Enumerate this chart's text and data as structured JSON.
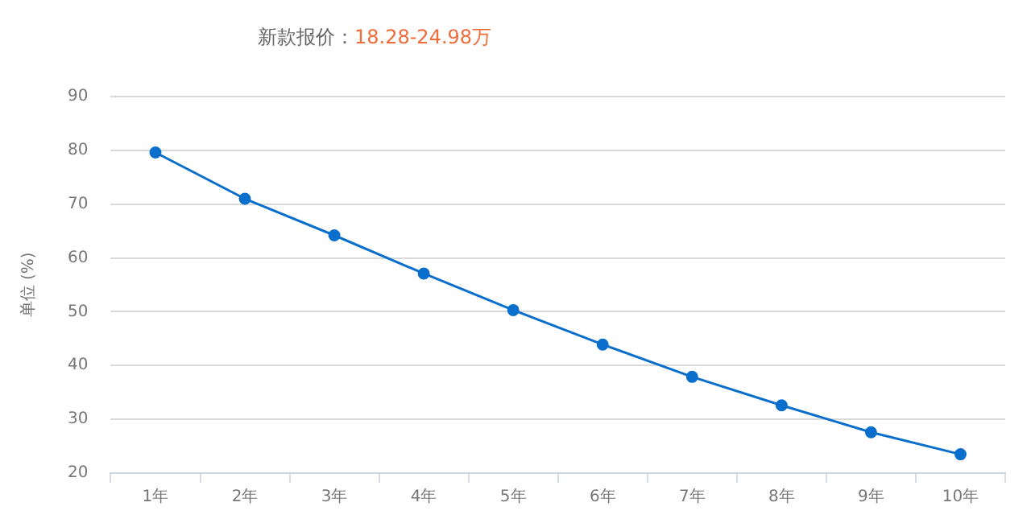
{
  "chart_data": {
    "type": "line",
    "annotations": [
      "新款报价：",
      "18.28-24.98万"
    ],
    "ylabel": "单位 (%)",
    "categories": [
      "1年",
      "2年",
      "3年",
      "4年",
      "5年",
      "6年",
      "7年",
      "8年",
      "9年",
      "10年"
    ],
    "series": [
      {
        "color": "#0a6fcc",
        "values": [
          79.6,
          71.0,
          64.2,
          57.1,
          50.3,
          43.9,
          37.9,
          32.6,
          27.6,
          23.5
        ]
      }
    ],
    "ylim": [
      20,
      90
    ],
    "yticks": [
      20,
      30,
      40,
      50,
      60,
      70,
      80,
      90
    ],
    "grid": "y",
    "legend": false,
    "marker": "circle",
    "line_style": "solid"
  }
}
